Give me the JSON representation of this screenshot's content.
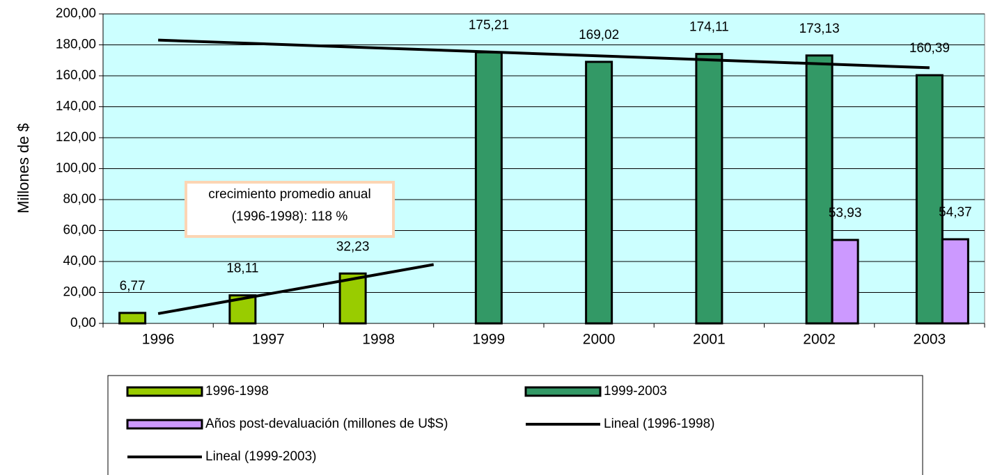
{
  "chart_data": {
    "type": "bar",
    "y_label": "Millones de $",
    "categories": [
      "1996",
      "1997",
      "1998",
      "1999",
      "2000",
      "2001",
      "2002",
      "2003"
    ],
    "series": [
      {
        "name": "1996-1998",
        "color": "#99cc00",
        "values": [
          6.77,
          18.11,
          32.23,
          null,
          null,
          null,
          null,
          null
        ],
        "value_labels": [
          "6,77",
          "18,11",
          "32,23",
          null,
          null,
          null,
          null,
          null
        ]
      },
      {
        "name": "1999-2003",
        "color": "#339966",
        "values": [
          null,
          null,
          null,
          175.21,
          169.02,
          174.11,
          173.13,
          160.39
        ],
        "value_labels": [
          null,
          null,
          null,
          "175,21",
          "169,02",
          "174,11",
          "173,13",
          "160,39"
        ]
      },
      {
        "name": "Años post-devaluación (millones de U$S)",
        "color": "#cc99ff",
        "values": [
          null,
          null,
          null,
          null,
          null,
          null,
          53.93,
          54.37
        ],
        "value_labels": [
          null,
          null,
          null,
          null,
          null,
          null,
          "53,93",
          "54,37"
        ]
      },
      {
        "name": "Lineal (1996-1998)",
        "type": "line",
        "color": "#000000",
        "x": [
          0,
          2.5
        ],
        "values": [
          6.31,
          38.04
        ]
      },
      {
        "name": "Lineal (1999-2003)",
        "type": "line",
        "color": "#000000",
        "x": [
          0,
          7
        ],
        "values": [
          183.1,
          165.2
        ]
      }
    ],
    "annotation": [
      "crecimiento promedio anual",
      "(1996-1998): 118 %"
    ],
    "ylim": [
      0,
      200
    ],
    "yticks": [
      {
        "value": 0,
        "label": "0,00"
      },
      {
        "value": 20,
        "label": "20,00"
      },
      {
        "value": 40,
        "label": "40,00"
      },
      {
        "value": 60,
        "label": "60,00"
      },
      {
        "value": 80,
        "label": "80,00"
      },
      {
        "value": 100,
        "label": "100,00"
      },
      {
        "value": 120,
        "label": "120,00"
      },
      {
        "value": 140,
        "label": "140,00"
      },
      {
        "value": 160,
        "label": "160,00"
      },
      {
        "value": 180,
        "label": "180,00"
      },
      {
        "value": 200,
        "label": "200,00"
      }
    ],
    "grid": true,
    "background": "#ccffff",
    "legend": "bottom"
  }
}
